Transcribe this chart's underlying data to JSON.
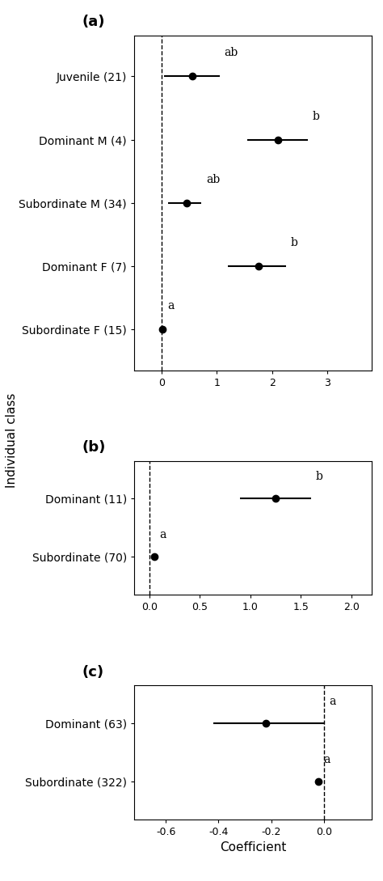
{
  "panel_a": {
    "title": "(a)",
    "categories": [
      "Juvenile (21)",
      "Dominant M (4)",
      "Subordinate M (34)",
      "Dominant F (7)",
      "Subordinate F (15)"
    ],
    "coefficients": [
      0.55,
      2.1,
      0.45,
      1.75,
      0.02
    ],
    "ci_low": [
      0.05,
      1.55,
      0.12,
      1.2,
      0.02
    ],
    "ci_high": [
      1.05,
      2.65,
      0.72,
      2.25,
      0.02
    ],
    "labels": [
      "ab",
      "b",
      "ab",
      "b",
      "a"
    ],
    "label_pos": [
      "above_right",
      "above_right",
      "above_right",
      "above_right",
      "above_right"
    ],
    "vline": 0,
    "xlim": [
      -0.5,
      3.8
    ],
    "xticks": [
      0,
      1,
      2,
      3
    ],
    "xticklabels": [
      "0",
      "1",
      "2",
      "3"
    ]
  },
  "panel_b": {
    "title": "(b)",
    "categories": [
      "Dominant (11)",
      "Subordinate (70)"
    ],
    "coefficients": [
      1.25,
      0.05
    ],
    "ci_low": [
      0.9,
      0.05
    ],
    "ci_high": [
      1.6,
      0.05
    ],
    "labels": [
      "b",
      "a"
    ],
    "vline": 0,
    "xlim": [
      -0.15,
      2.2
    ],
    "xticks": [
      0.0,
      0.5,
      1.0,
      1.5,
      2.0
    ],
    "xticklabels": [
      "0.0",
      "0.5",
      "1.0",
      "1.5",
      "2.0"
    ]
  },
  "panel_c": {
    "title": "(c)",
    "categories": [
      "Dominant (63)",
      "Subordinate (322)"
    ],
    "coefficients": [
      -0.22,
      -0.02
    ],
    "ci_low": [
      -0.42,
      -0.02
    ],
    "ci_high": [
      0.0,
      -0.02
    ],
    "labels": [
      "a",
      "a"
    ],
    "vline": 0.0,
    "xlim": [
      -0.72,
      0.18
    ],
    "xticks": [
      -0.6,
      -0.4,
      -0.2,
      0.0
    ],
    "xticklabels": [
      "-0.6",
      "-0.4",
      "-0.2",
      "0.0"
    ]
  },
  "ylabel": "Individual class",
  "xlabel": "Coefficient",
  "dot_size": 6,
  "linewidth": 1.5,
  "font_size": 10,
  "title_font_size": 13,
  "label_font_size": 10,
  "tick_font_size": 9
}
